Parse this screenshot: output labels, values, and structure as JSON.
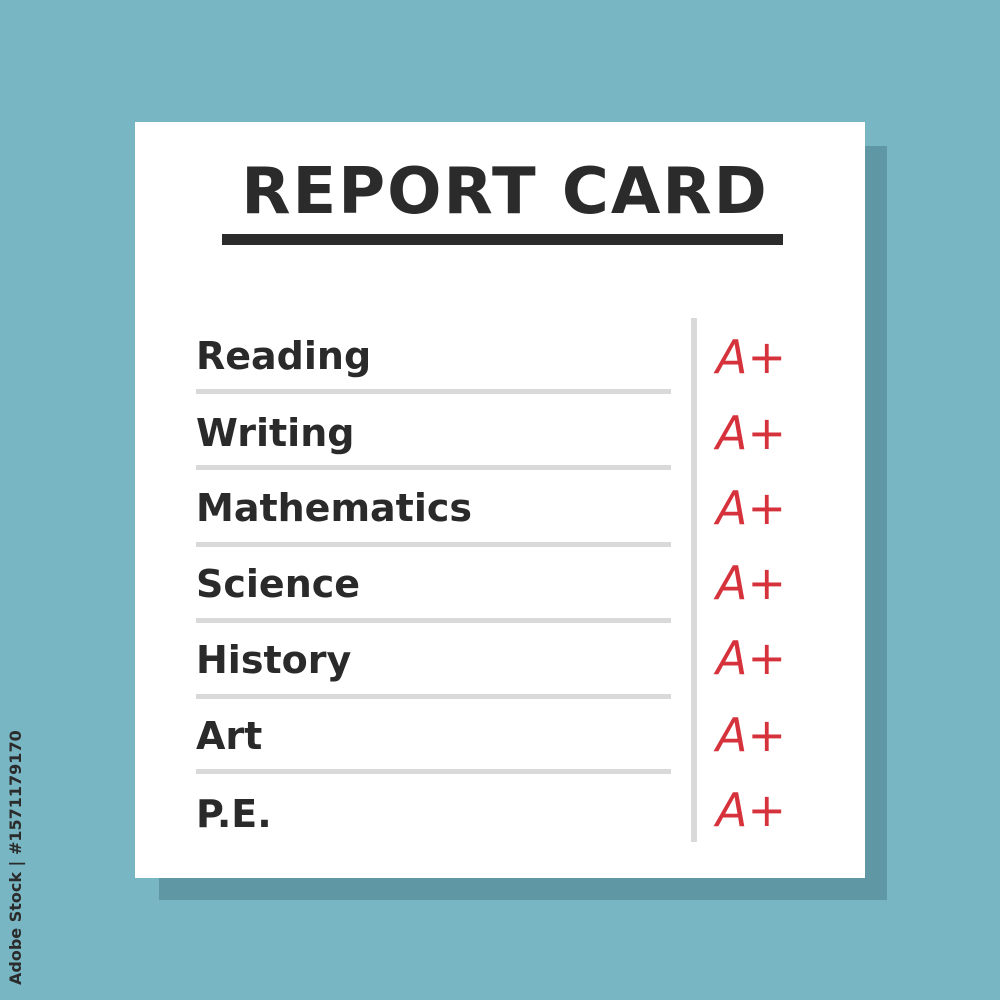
{
  "title": "REPORT CARD",
  "subjects": [
    {
      "name": "Reading",
      "grade": "A+"
    },
    {
      "name": "Writing",
      "grade": "A+"
    },
    {
      "name": "Mathematics",
      "grade": "A+"
    },
    {
      "name": "Science",
      "grade": "A+"
    },
    {
      "name": "History",
      "grade": "A+"
    },
    {
      "name": "Art",
      "grade": "A+"
    },
    {
      "name": "P.E.",
      "grade": "A+"
    }
  ],
  "watermark": "Adobe Stock | #1571179170",
  "colors": {
    "background": "#78b6c3",
    "shadow": "#5f98a4",
    "grade": "#d6323c",
    "text": "#2b2b2b"
  }
}
